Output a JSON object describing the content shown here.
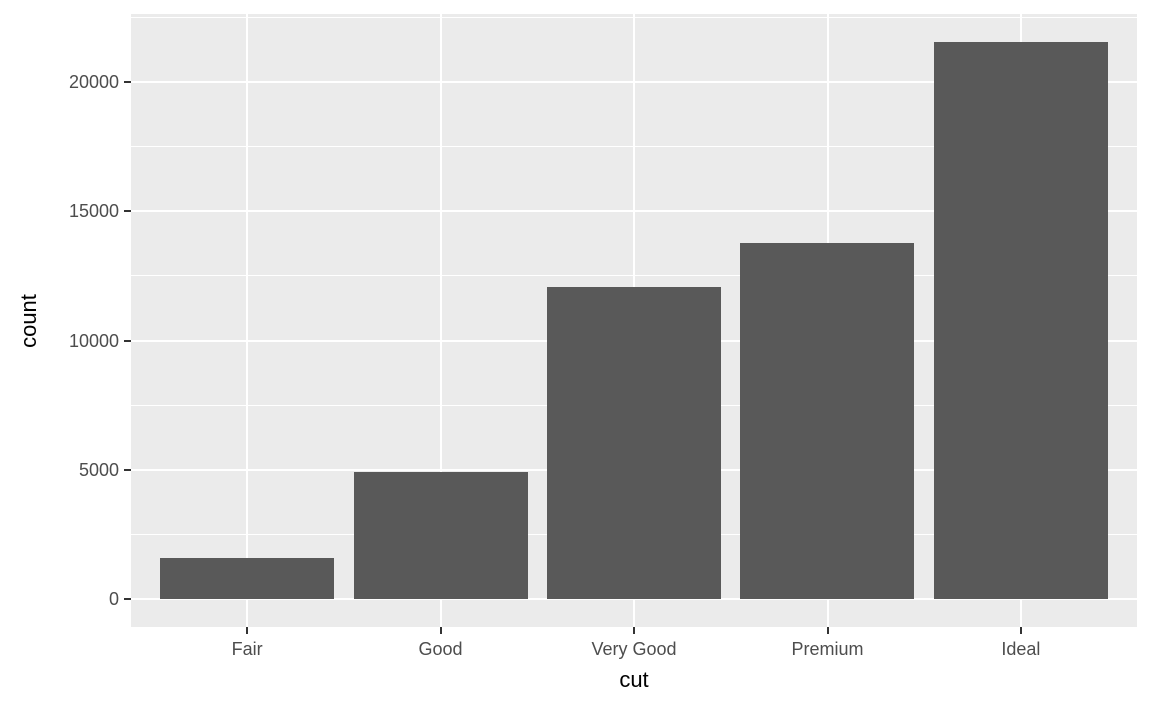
{
  "chart_data": {
    "type": "bar",
    "title": "",
    "xlabel": "cut",
    "ylabel": "count",
    "categories": [
      "Fair",
      "Good",
      "Very Good",
      "Premium",
      "Ideal"
    ],
    "values": [
      1610,
      4906,
      12082,
      13791,
      21551
    ],
    "y_ticks": [
      0,
      5000,
      10000,
      15000,
      20000
    ],
    "y_minor_ticks": [
      2500,
      7500,
      12500,
      17500,
      22500
    ],
    "ylim": [
      0,
      21551
    ],
    "grid": "major-and-minor",
    "legend": "none",
    "style": {
      "bar_color": "#595959",
      "panel_background": "#EBEBEB",
      "grid_color": "#FFFFFF",
      "tick_label_color": "#4D4D4D",
      "tick_mark_color": "#333333",
      "axis_title_color": "#000000",
      "page_background": "#FFFFFF"
    }
  }
}
